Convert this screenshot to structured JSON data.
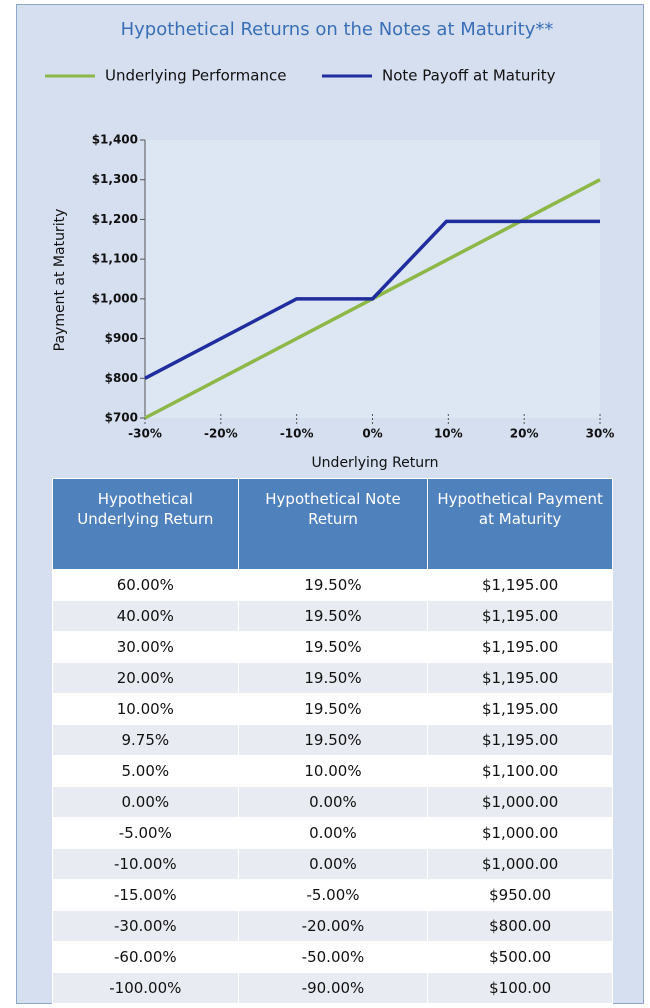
{
  "chart_data": {
    "type": "line",
    "title": "Hypothetical Returns on the Notes at Maturity**",
    "x_label": "Underlying Return",
    "y_label": "Payment at Maturity",
    "series": [
      {
        "name": "Underlying Performance",
        "color": "#8db848",
        "x": [
          -30,
          30
        ],
        "values": [
          700,
          1300
        ]
      },
      {
        "name": "Note Payoff at Maturity",
        "color": "#1f2d9e",
        "x": [
          -30,
          -10,
          0,
          9.75,
          30
        ],
        "values": [
          800,
          1000,
          1000,
          1195,
          1195
        ]
      }
    ],
    "xlim": [
      -30,
      30
    ],
    "xticks": [
      {
        "value": -30,
        "label": "-30%"
      },
      {
        "value": -20,
        "label": "-20%"
      },
      {
        "value": -10,
        "label": "-10%"
      },
      {
        "value": 0,
        "label": "0%"
      },
      {
        "value": 10,
        "label": "10%"
      },
      {
        "value": 20,
        "label": "20%"
      },
      {
        "value": 30,
        "label": "30%"
      }
    ],
    "ylim": [
      700,
      1400
    ],
    "yticks": [
      {
        "value": 700,
        "label": "$700"
      },
      {
        "value": 800,
        "label": "$800"
      },
      {
        "value": 900,
        "label": "$900"
      },
      {
        "value": 1000,
        "label": "$1,000"
      },
      {
        "value": 1100,
        "label": "$1,100"
      },
      {
        "value": 1200,
        "label": "$1,200"
      },
      {
        "value": 1300,
        "label": "$1,300"
      },
      {
        "value": 1400,
        "label": "$1,400"
      }
    ],
    "grid": false,
    "legend": "top"
  },
  "table": {
    "header": [
      "Hypothetical Underlying Return",
      "Hypothetical Note Return",
      "Hypothetical Payment at Maturity"
    ],
    "rows": [
      [
        "60.00%",
        "19.50%",
        "$1,195.00"
      ],
      [
        "40.00%",
        "19.50%",
        "$1,195.00"
      ],
      [
        "30.00%",
        "19.50%",
        "$1,195.00"
      ],
      [
        "20.00%",
        "19.50%",
        "$1,195.00"
      ],
      [
        "10.00%",
        "19.50%",
        "$1,195.00"
      ],
      [
        "9.75%",
        "19.50%",
        "$1,195.00"
      ],
      [
        "5.00%",
        "10.00%",
        "$1,100.00"
      ],
      [
        "0.00%",
        "0.00%",
        "$1,000.00"
      ],
      [
        "-5.00%",
        "0.00%",
        "$1,000.00"
      ],
      [
        "-10.00%",
        "0.00%",
        "$1,000.00"
      ],
      [
        "-15.00%",
        "-5.00%",
        "$950.00"
      ],
      [
        "-30.00%",
        "-20.00%",
        "$800.00"
      ],
      [
        "-60.00%",
        "-50.00%",
        "$500.00"
      ],
      [
        "-100.00%",
        "-90.00%",
        "$100.00"
      ]
    ]
  }
}
